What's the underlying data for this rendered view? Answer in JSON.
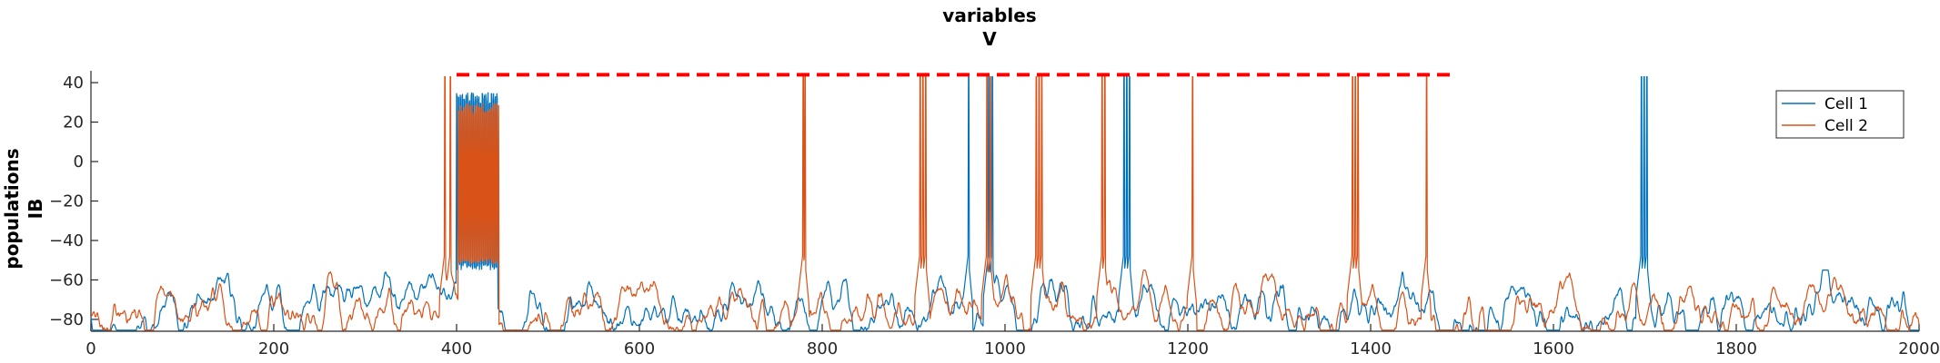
{
  "chart_data": {
    "type": "line",
    "title": [
      "variables",
      "V"
    ],
    "ylabel": [
      "populations",
      "IB"
    ],
    "xlabel": "",
    "xlim": [
      0,
      2000
    ],
    "ylim": [
      -86,
      46
    ],
    "xticks": [
      0,
      200,
      400,
      600,
      800,
      1000,
      1200,
      1400,
      1600,
      1800,
      2000
    ],
    "yticks": [
      -80,
      -60,
      -40,
      -20,
      0,
      20,
      40
    ],
    "x_tick_labels": [
      "0",
      "200",
      "400",
      "600",
      "800",
      "1000",
      "1200",
      "1400",
      "1600",
      "1800",
      "2000"
    ],
    "y_tick_labels": [
      "-80",
      "-60",
      "-40",
      "-20",
      "0",
      "20",
      "40"
    ],
    "grid": false,
    "legend_position": "top-right",
    "legend": [
      "Cell 1",
      "Cell 2"
    ],
    "colors": {
      "cell1": "#0072BD",
      "cell2": "#D95319",
      "stim": "#FF0000"
    },
    "series": [
      {
        "name": "Cell 1",
        "color": "#0072BD",
        "baseline": -77,
        "burst_intervals": [
          [
            400,
            445
          ]
        ],
        "burst_range": [
          -55,
          35
        ],
        "spikes": [
          960,
          982,
          986,
          1130,
          1133,
          1136,
          1696,
          1699,
          1702
        ]
      },
      {
        "name": "Cell 2",
        "color": "#D95319",
        "baseline": -77,
        "burst_intervals": [
          [
            402,
            446
          ]
        ],
        "burst_range": [
          -52,
          30
        ],
        "spikes": [
          387,
          393,
          779,
          781,
          907,
          910,
          913,
          980,
          984,
          1034,
          1037,
          1040,
          1106,
          1109,
          1205,
          1380,
          1383,
          1386,
          1461
        ]
      }
    ],
    "stimulus_line": {
      "x": [
        400,
        1490
      ],
      "y": 44,
      "style": "dashed",
      "color": "#FF0000"
    }
  }
}
